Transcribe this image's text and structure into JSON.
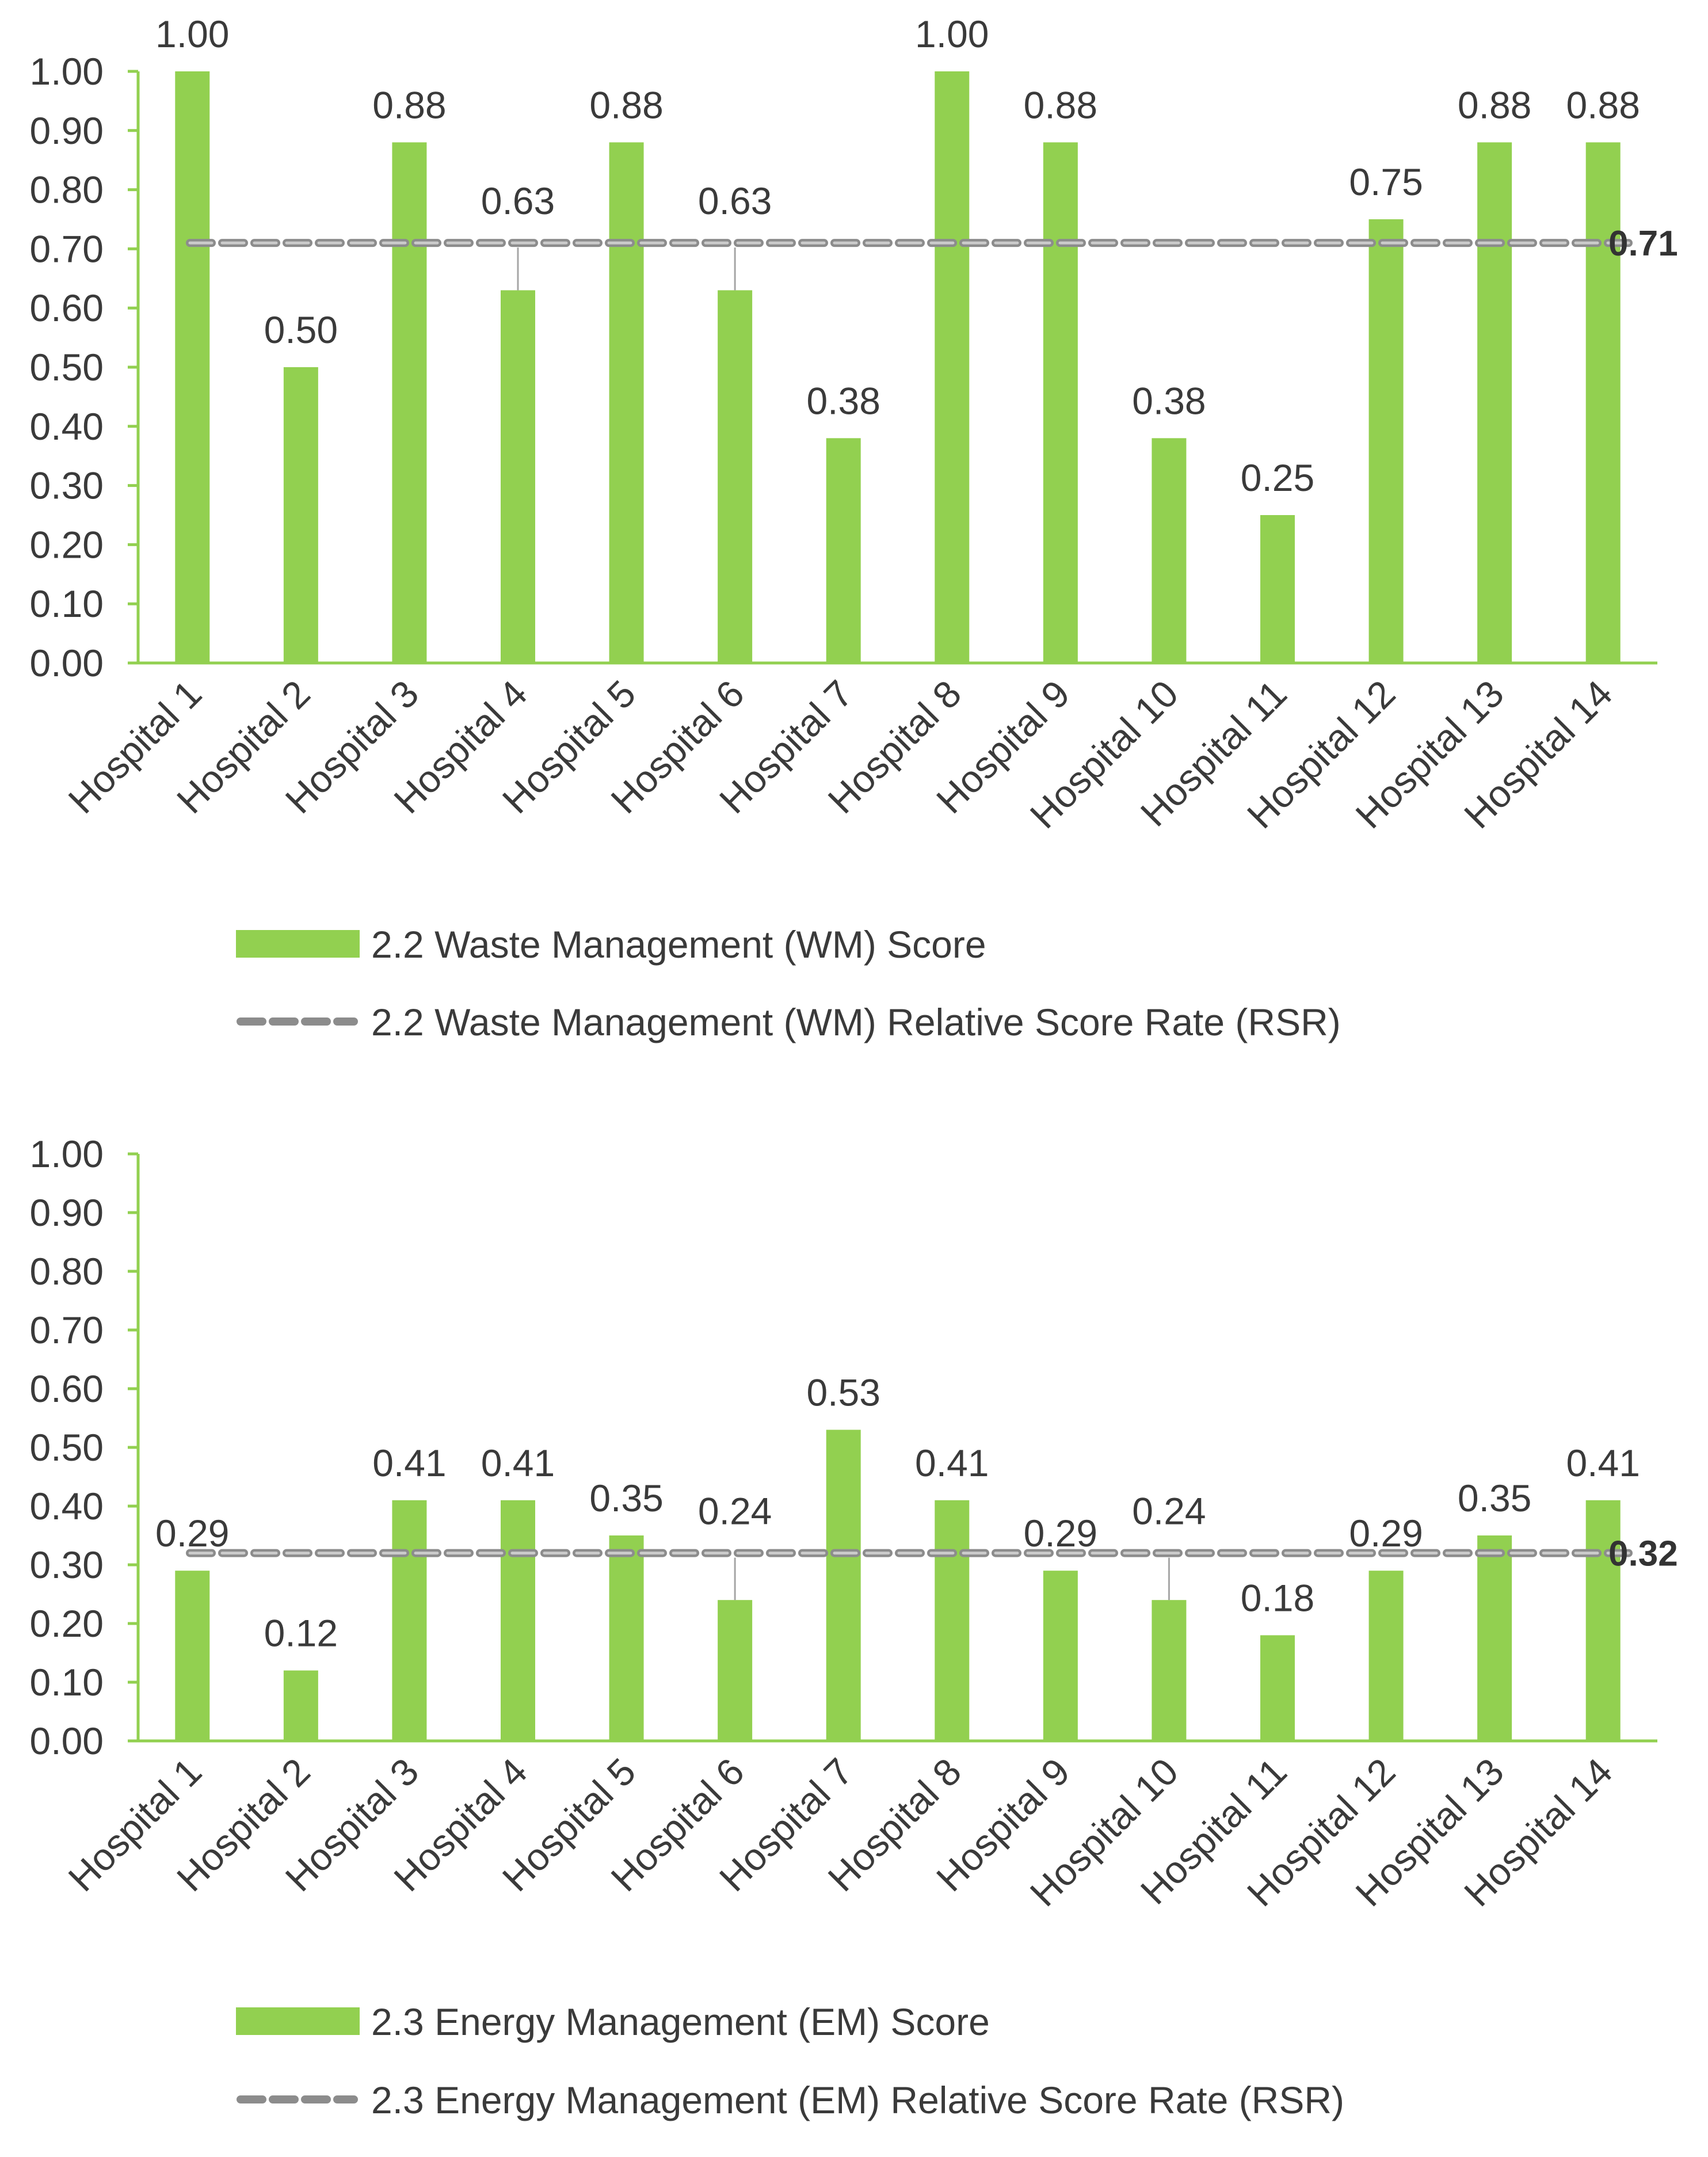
{
  "chart_data": [
    {
      "type": "bar",
      "categories": [
        "Hospital 1",
        "Hospital 2",
        "Hospital 3",
        "Hospital 4",
        "Hospital 5",
        "Hospital 6",
        "Hospital 7",
        "Hospital 8",
        "Hospital 9",
        "Hospital 10",
        "Hospital 11",
        "Hospital 12",
        "Hospital 13",
        "Hospital 14"
      ],
      "series": [
        {
          "name": "2.2 Waste Management (WM) Score",
          "kind": "bar",
          "values": [
            1.0,
            0.5,
            0.88,
            0.63,
            0.88,
            0.63,
            0.38,
            1.0,
            0.88,
            0.38,
            0.25,
            0.75,
            0.88,
            0.88
          ],
          "labels": [
            "1.00",
            "0.50",
            "0.88",
            "0.63",
            "0.88",
            "0.63",
            "0.38",
            "1.00",
            "0.88",
            "0.38",
            "0.25",
            "0.75",
            "0.88",
            "0.88"
          ]
        },
        {
          "name": "2.2 Waste Management (WM) Relative Score Rate (RSR)",
          "kind": "dashed-line",
          "value": 0.71,
          "label": "0.71"
        }
      ],
      "ylim": [
        0,
        1
      ],
      "yticks": [
        "0.00",
        "0.10",
        "0.20",
        "0.30",
        "0.40",
        "0.50",
        "0.60",
        "0.70",
        "0.80",
        "0.90",
        "1.00"
      ],
      "title": "",
      "xlabel": "",
      "ylabel": "",
      "legend_position": "bottom",
      "colors": {
        "bar": "#92d050",
        "line": "#8c8c8c",
        "axis": "#92d050"
      }
    },
    {
      "type": "bar",
      "categories": [
        "Hospital 1",
        "Hospital 2",
        "Hospital 3",
        "Hospital 4",
        "Hospital 5",
        "Hospital 6",
        "Hospital 7",
        "Hospital 8",
        "Hospital 9",
        "Hospital 10",
        "Hospital 11",
        "Hospital 12",
        "Hospital 13",
        "Hospital 14"
      ],
      "series": [
        {
          "name": "2.3 Energy Management (EM) Score",
          "kind": "bar",
          "values": [
            0.29,
            0.12,
            0.41,
            0.41,
            0.35,
            0.24,
            0.53,
            0.41,
            0.29,
            0.24,
            0.18,
            0.29,
            0.35,
            0.41
          ],
          "labels": [
            "0.29",
            "0.12",
            "0.41",
            "0.41",
            "0.35",
            "0.24",
            "0.53",
            "0.41",
            "0.29",
            "0.24",
            "0.18",
            "0.29",
            "0.35",
            "0.41"
          ]
        },
        {
          "name": "2.3 Energy Management (EM) Relative Score Rate (RSR)",
          "kind": "dashed-line",
          "value": 0.32,
          "label": "0.32"
        }
      ],
      "ylim": [
        0,
        1
      ],
      "yticks": [
        "0.00",
        "0.10",
        "0.20",
        "0.30",
        "0.40",
        "0.50",
        "0.60",
        "0.70",
        "0.80",
        "0.90",
        "1.00"
      ],
      "title": "",
      "xlabel": "",
      "ylabel": "",
      "legend_position": "bottom",
      "colors": {
        "bar": "#92d050",
        "line": "#8c8c8c",
        "axis": "#92d050"
      }
    }
  ]
}
